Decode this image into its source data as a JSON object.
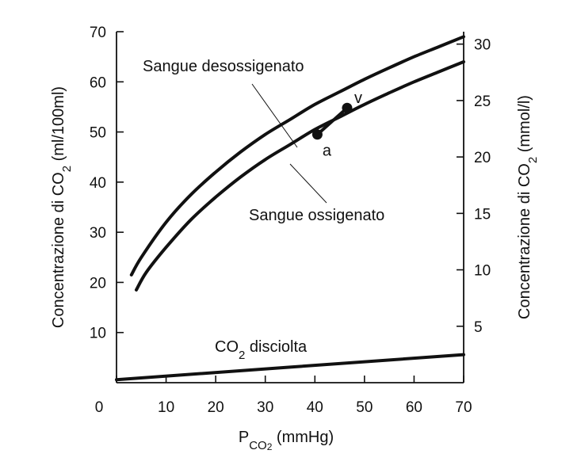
{
  "chart_data": {
    "type": "line",
    "title": "",
    "xlabel": {
      "main": "P",
      "sub": "CO",
      "sub2": "2",
      "unit": "(mmHg)"
    },
    "ylabel": {
      "main": "Concentrazione di CO",
      "sub": "2",
      "unit": "(ml/100ml)"
    },
    "y2label": {
      "main": "Concentrazione di CO",
      "sub": "2",
      "unit": "(mmol/l)"
    },
    "xlim": [
      0,
      70
    ],
    "ylim": [
      0,
      70
    ],
    "y2lim": [
      0,
      31.1
    ],
    "x_ticks": [
      "0",
      "10",
      "20",
      "30",
      "40",
      "50",
      "60",
      "70"
    ],
    "y_ticks": [
      "10",
      "20",
      "30",
      "40",
      "50",
      "60",
      "70"
    ],
    "y2_ticks": [
      "5",
      "10",
      "15",
      "20",
      "25",
      "30"
    ],
    "grid": false,
    "series": [
      {
        "name": "Sangue desossigenato",
        "x": [
          3,
          5,
          10,
          15,
          20,
          25,
          30,
          35,
          40,
          45,
          50,
          55,
          60,
          65,
          70
        ],
        "y": [
          21.5,
          25,
          32,
          37.5,
          42,
          46,
          49.5,
          52.5,
          55.5,
          58,
          60.5,
          62.8,
          65,
          67,
          69
        ]
      },
      {
        "name": "Sangue ossigenato",
        "x": [
          4,
          6,
          10,
          15,
          20,
          25,
          30,
          35,
          40,
          45,
          50,
          55,
          60,
          65,
          70
        ],
        "y": [
          18.5,
          22,
          27,
          32.5,
          37,
          41,
          44.5,
          47.5,
          50.5,
          53,
          55.5,
          57.8,
          60,
          62,
          64
        ]
      },
      {
        "name": "CO2 disciolta",
        "label_main": "CO",
        "label_sub": "2",
        "label_rest": " disciolta",
        "x": [
          0,
          70
        ],
        "y": [
          0.6,
          5.6
        ]
      }
    ],
    "points": [
      {
        "label": "a",
        "x": 40.5,
        "y": 49.5
      },
      {
        "label": "v",
        "x": 46.5,
        "y": 54.8
      }
    ],
    "annotations": {
      "desossigenato": "Sangue desossigenato",
      "ossigenato": "Sangue ossigenato"
    }
  }
}
